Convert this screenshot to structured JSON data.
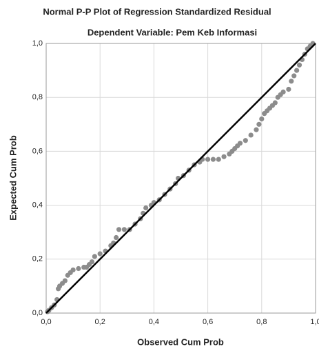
{
  "chart_data": {
    "type": "scatter",
    "title": "Normal P-P Plot of Regression Standardized Residual",
    "subtitle": "Dependent Variable: Pem Keb Informasi",
    "x_label": "Observed Cum Prob",
    "y_label": "Expected Cum Prob",
    "color": "#8c8c8c",
    "reference_line_color": "#000000",
    "grid": true,
    "xlim": [
      0,
      1
    ],
    "ylim": [
      0,
      1
    ],
    "xticks": [
      {
        "value": 0,
        "label": "0,0"
      },
      {
        "value": 0.2,
        "label": "0,2"
      },
      {
        "value": 0.4,
        "label": "0,4"
      },
      {
        "value": 0.6,
        "label": "0,6"
      },
      {
        "value": 0.8,
        "label": "0,8"
      },
      {
        "value": 1,
        "label": "1,0"
      }
    ],
    "yticks": [
      {
        "value": 0,
        "label": "0,0"
      },
      {
        "value": 0.2,
        "label": "0,2"
      },
      {
        "value": 0.4,
        "label": "0,4"
      },
      {
        "value": 0.6,
        "label": "0,6"
      },
      {
        "value": 0.8,
        "label": "0,8"
      },
      {
        "value": 1,
        "label": "1,0"
      }
    ],
    "x": [
      0.005,
      0.01,
      0.02,
      0.03,
      0.04,
      0.045,
      0.05,
      0.06,
      0.07,
      0.08,
      0.09,
      0.1,
      0.12,
      0.14,
      0.15,
      0.16,
      0.17,
      0.18,
      0.2,
      0.22,
      0.24,
      0.25,
      0.26,
      0.27,
      0.29,
      0.31,
      0.33,
      0.35,
      0.36,
      0.37,
      0.39,
      0.4,
      0.42,
      0.44,
      0.46,
      0.48,
      0.49,
      0.51,
      0.53,
      0.55,
      0.57,
      0.58,
      0.6,
      0.62,
      0.64,
      0.66,
      0.68,
      0.69,
      0.7,
      0.71,
      0.72,
      0.74,
      0.76,
      0.78,
      0.79,
      0.8,
      0.81,
      0.82,
      0.83,
      0.84,
      0.85,
      0.86,
      0.87,
      0.88,
      0.9,
      0.91,
      0.92,
      0.93,
      0.94,
      0.95,
      0.96,
      0.97,
      0.98,
      0.99
    ],
    "values": [
      0.005,
      0.01,
      0.02,
      0.03,
      0.05,
      0.09,
      0.1,
      0.11,
      0.12,
      0.14,
      0.15,
      0.16,
      0.165,
      0.17,
      0.17,
      0.18,
      0.19,
      0.21,
      0.22,
      0.23,
      0.25,
      0.26,
      0.28,
      0.31,
      0.31,
      0.31,
      0.33,
      0.35,
      0.37,
      0.39,
      0.4,
      0.41,
      0.42,
      0.44,
      0.46,
      0.48,
      0.5,
      0.51,
      0.53,
      0.55,
      0.56,
      0.57,
      0.57,
      0.57,
      0.57,
      0.58,
      0.59,
      0.6,
      0.61,
      0.62,
      0.63,
      0.64,
      0.66,
      0.68,
      0.7,
      0.72,
      0.74,
      0.75,
      0.76,
      0.77,
      0.78,
      0.8,
      0.81,
      0.82,
      0.83,
      0.86,
      0.88,
      0.9,
      0.92,
      0.94,
      0.96,
      0.98,
      0.99,
      1.0
    ]
  }
}
